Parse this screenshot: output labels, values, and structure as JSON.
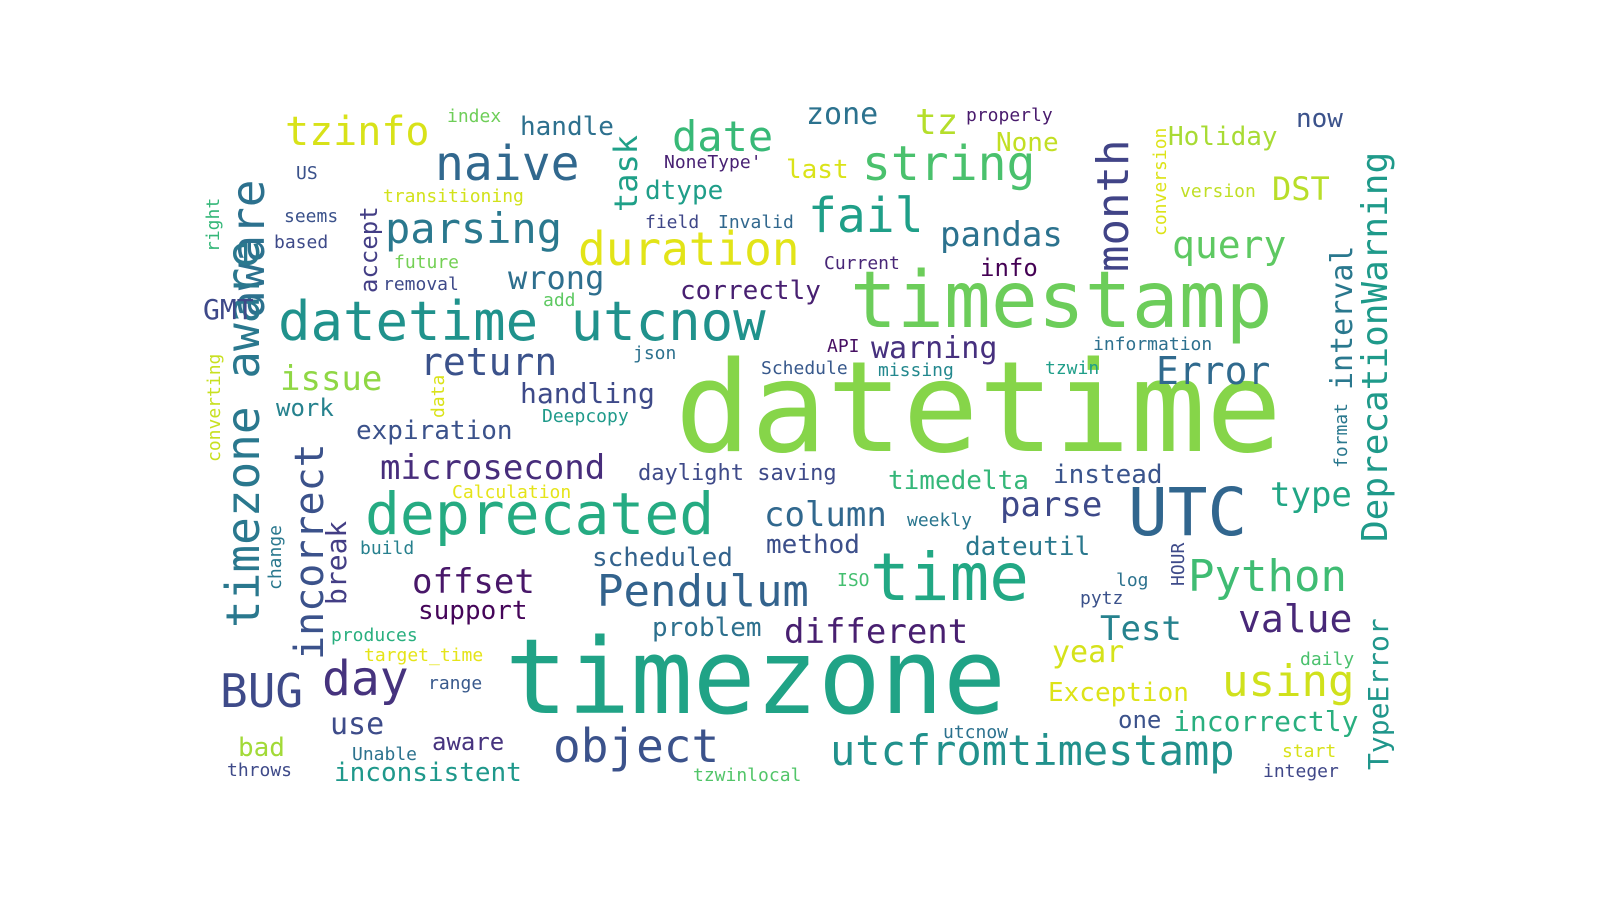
{
  "words": [
    {
      "text": "datetime",
      "color": "#86d549"
    },
    {
      "text": "timezone",
      "color": "#20a386"
    },
    {
      "text": "timestamp",
      "color": "#6ccd5a"
    },
    {
      "text": "time",
      "color": "#22a884"
    },
    {
      "text": "UTC",
      "color": "#31668e"
    },
    {
      "text": "deprecated",
      "color": "#25ab82"
    },
    {
      "text": "datetime utcnow",
      "color": "#20928c"
    },
    {
      "text": "aware",
      "color": "#2c718e"
    },
    {
      "text": "timezone aware",
      "color": "#2a788e"
    },
    {
      "text": "naive",
      "color": "#31688e"
    },
    {
      "text": "tzinfo",
      "color": "#d8e219"
    },
    {
      "text": "date",
      "color": "#38b977"
    },
    {
      "text": "string",
      "color": "#4ac16d"
    },
    {
      "text": "fail",
      "color": "#1f9f88"
    },
    {
      "text": "duration",
      "color": "#e2e418"
    },
    {
      "text": "parsing",
      "color": "#2a788e"
    },
    {
      "text": "month",
      "color": "#414487"
    },
    {
      "text": "object",
      "color": "#3b528b"
    },
    {
      "text": "utcfromtimestamp",
      "color": "#21918c"
    },
    {
      "text": "Pendulum",
      "color": "#33638d"
    },
    {
      "text": "Python",
      "color": "#3fbc73"
    },
    {
      "text": "BUG",
      "color": "#3e4a89"
    },
    {
      "text": "day",
      "color": "#46337e"
    },
    {
      "text": "incorrect",
      "color": "#3b528b"
    },
    {
      "text": "using",
      "color": "#d0e11c"
    },
    {
      "text": "DeprecationWarning",
      "color": "#1f9a8a"
    },
    {
      "text": "interval",
      "color": "#2a788e"
    },
    {
      "text": "return",
      "color": "#3b528b"
    },
    {
      "text": "query",
      "color": "#5ec962"
    },
    {
      "text": "pandas",
      "color": "#2c728e"
    },
    {
      "text": "Error",
      "color": "#306a8e"
    },
    {
      "text": "value",
      "color": "#482878"
    },
    {
      "text": "Test",
      "color": "#26828e"
    },
    {
      "text": "microsecond",
      "color": "#472d7b"
    },
    {
      "text": "offset",
      "color": "#481769"
    },
    {
      "text": "column",
      "color": "#31688e"
    },
    {
      "text": "different",
      "color": "#481f70"
    },
    {
      "text": "parse",
      "color": "#3e4989"
    },
    {
      "text": "type",
      "color": "#21a685"
    },
    {
      "text": "issue",
      "color": "#8fd744"
    },
    {
      "text": "wrong",
      "color": "#2e6f8e"
    },
    {
      "text": "zone",
      "color": "#2c728e"
    },
    {
      "text": "tz",
      "color": "#b5de2b"
    },
    {
      "text": "task",
      "color": "#1fa088"
    },
    {
      "text": "break",
      "color": "#433e85"
    },
    {
      "text": "year",
      "color": "#d5e21a"
    },
    {
      "text": "Exception",
      "color": "#dde318"
    },
    {
      "text": "TypeError",
      "color": "#1f968b"
    },
    {
      "text": "incorrectly",
      "color": "#29af7f"
    },
    {
      "text": "timedelta",
      "color": "#35b779"
    },
    {
      "text": "instead",
      "color": "#3a548c"
    },
    {
      "text": "handle",
      "color": "#2d708e"
    },
    {
      "text": "handling",
      "color": "#3e4a89"
    },
    {
      "text": "expiration",
      "color": "#3b528b"
    },
    {
      "text": "warning",
      "color": "#46307e"
    },
    {
      "text": "correctly",
      "color": "#482071"
    },
    {
      "text": "scheduled",
      "color": "#33638d"
    },
    {
      "text": "method",
      "color": "#3c4f8a"
    },
    {
      "text": "support",
      "color": "#450559"
    },
    {
      "text": "problem",
      "color": "#2d708e"
    },
    {
      "text": "dateutil",
      "color": "#2a788e"
    },
    {
      "text": "use",
      "color": "#3e4c8a"
    },
    {
      "text": "aware",
      "color": "#46337e"
    },
    {
      "text": "inconsistent",
      "color": "#1f988b"
    },
    {
      "text": "bad",
      "color": "#a2da37"
    },
    {
      "text": "Holiday",
      "color": "#a8db34"
    },
    {
      "text": "DST",
      "color": "#b8de29"
    },
    {
      "text": "now",
      "color": "#3b528b"
    },
    {
      "text": "None",
      "color": "#c2df23"
    },
    {
      "text": "last",
      "color": "#dae319"
    },
    {
      "text": "dtype",
      "color": "#1f9e89"
    },
    {
      "text": "accept",
      "color": "#433e85"
    },
    {
      "text": "info",
      "color": "#440154"
    },
    {
      "text": "work",
      "color": "#26828e"
    },
    {
      "text": "GMT",
      "color": "#3e4989"
    },
    {
      "text": "one",
      "color": "#3b528b"
    },
    {
      "text": "daylight saving",
      "color": "#3e4a89"
    },
    {
      "text": "Schedule",
      "color": "#38598c"
    },
    {
      "text": "index",
      "color": "#6ece58"
    },
    {
      "text": "transitioning",
      "color": "#d2e21b"
    },
    {
      "text": "NoneType'",
      "color": "#482173"
    },
    {
      "text": "field",
      "color": "#3f4788"
    },
    {
      "text": "Invalid",
      "color": "#31688e"
    },
    {
      "text": "properly",
      "color": "#481a6c"
    },
    {
      "text": "conversion",
      "color": "#dde318"
    },
    {
      "text": "version",
      "color": "#c0df25"
    },
    {
      "text": "US",
      "color": "#3b528b"
    },
    {
      "text": "seems",
      "color": "#3b528b"
    },
    {
      "text": "based",
      "color": "#3e4a89"
    },
    {
      "text": "right",
      "color": "#35b779"
    },
    {
      "text": "future",
      "color": "#74d055"
    },
    {
      "text": "removal",
      "color": "#3e4a89"
    },
    {
      "text": "add",
      "color": "#5ec962"
    },
    {
      "text": "Current",
      "color": "#482677"
    },
    {
      "text": "json",
      "color": "#2c718e"
    },
    {
      "text": "API",
      "color": "#471063"
    },
    {
      "text": "missing",
      "color": "#23888e"
    },
    {
      "text": "information",
      "color": "#2d708e"
    },
    {
      "text": "tzwin",
      "color": "#1f9e89"
    },
    {
      "text": "converting",
      "color": "#c8e020"
    },
    {
      "text": "data",
      "color": "#dae319"
    },
    {
      "text": "Deepcopy",
      "color": "#1f9a8a"
    },
    {
      "text": "Calculation",
      "color": "#e5e419"
    },
    {
      "text": "format",
      "color": "#2a788e"
    },
    {
      "text": "weekly",
      "color": "#2a768e"
    },
    {
      "text": "change",
      "color": "#2a788e"
    },
    {
      "text": "build",
      "color": "#27808e"
    },
    {
      "text": "HOUR",
      "color": "#3e4a89"
    },
    {
      "text": "ISO",
      "color": "#44bf70"
    },
    {
      "text": "log",
      "color": "#2c728e"
    },
    {
      "text": "pytz",
      "color": "#3b528b"
    },
    {
      "text": "produces",
      "color": "#29af7f"
    },
    {
      "text": "target_time",
      "color": "#e5e419"
    },
    {
      "text": "range",
      "color": "#38598c"
    },
    {
      "text": "daily",
      "color": "#4ac16d"
    },
    {
      "text": "Unable",
      "color": "#2c728e"
    },
    {
      "text": "utcnow",
      "color": "#2c718e"
    },
    {
      "text": "start",
      "color": "#d8e219"
    },
    {
      "text": "throws",
      "color": "#3e4a89"
    },
    {
      "text": "tzwinlocal",
      "color": "#52c569"
    },
    {
      "text": "integer",
      "color": "#3f4788"
    }
  ]
}
